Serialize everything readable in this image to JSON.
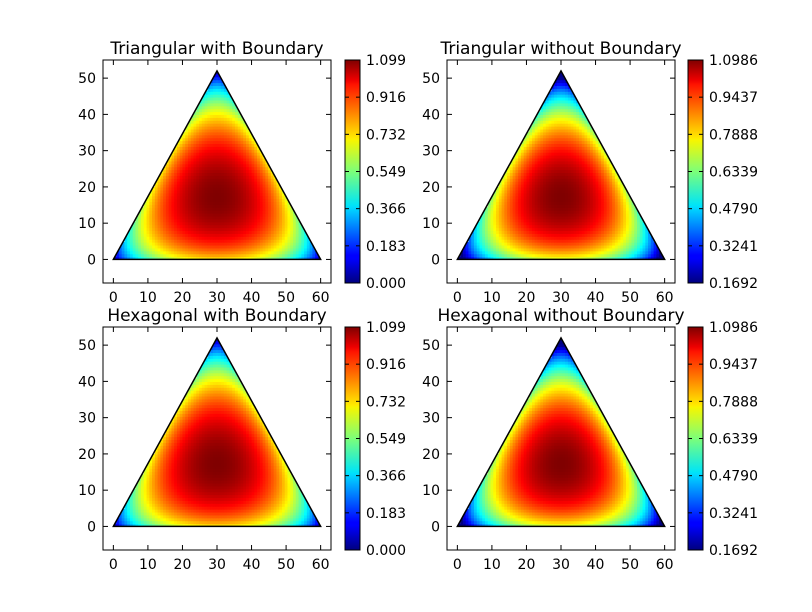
{
  "figure": {
    "colormap": "jet"
  },
  "chart_data": [
    {
      "type": "heatmap",
      "title": "Triangular with Boundary",
      "xlabel": "",
      "ylabel": "",
      "xlim": [
        -3,
        63
      ],
      "ylim": [
        -6.5,
        55
      ],
      "xticks": [
        0,
        10,
        20,
        30,
        40,
        50,
        60
      ],
      "yticks": [
        0,
        10,
        20,
        30,
        40,
        50
      ],
      "domain_vertices": [
        [
          0,
          0
        ],
        [
          60,
          0
        ],
        [
          30,
          52
        ]
      ],
      "field_max_location": [
        30,
        17.3
      ],
      "include_boundary": true,
      "colorbar": {
        "min": 0.0,
        "max": 1.099,
        "ticks": [
          "0.000",
          "0.183",
          "0.366",
          "0.549",
          "0.732",
          "0.916",
          "1.099"
        ]
      }
    },
    {
      "type": "heatmap",
      "title": "Triangular without Boundary",
      "xlabel": "",
      "ylabel": "",
      "xlim": [
        -3,
        63
      ],
      "ylim": [
        -6.5,
        55
      ],
      "xticks": [
        0,
        10,
        20,
        30,
        40,
        50,
        60
      ],
      "yticks": [
        0,
        10,
        20,
        30,
        40,
        50
      ],
      "domain_vertices": [
        [
          0,
          0
        ],
        [
          60,
          0
        ],
        [
          30,
          52
        ]
      ],
      "field_max_location": [
        30,
        17.3
      ],
      "include_boundary": false,
      "colorbar": {
        "min": 0.1692,
        "max": 1.0986,
        "ticks": [
          "0.1692",
          "0.3241",
          "0.4790",
          "0.6339",
          "0.7888",
          "0.9437",
          "1.0986"
        ]
      }
    },
    {
      "type": "heatmap",
      "title": "Hexagonal with Boundary",
      "xlabel": "",
      "ylabel": "",
      "xlim": [
        -3,
        63
      ],
      "ylim": [
        -6.5,
        55
      ],
      "xticks": [
        0,
        10,
        20,
        30,
        40,
        50,
        60
      ],
      "yticks": [
        0,
        10,
        20,
        30,
        40,
        50
      ],
      "domain_vertices": [
        [
          0,
          0
        ],
        [
          60,
          0
        ],
        [
          30,
          52
        ]
      ],
      "field_max_location": [
        30,
        17.3
      ],
      "include_boundary": true,
      "colorbar": {
        "min": 0.0,
        "max": 1.099,
        "ticks": [
          "0.000",
          "0.183",
          "0.366",
          "0.549",
          "0.732",
          "0.916",
          "1.099"
        ]
      }
    },
    {
      "type": "heatmap",
      "title": "Hexagonal without Boundary",
      "xlabel": "",
      "ylabel": "",
      "xlim": [
        -3,
        63
      ],
      "ylim": [
        -6.5,
        55
      ],
      "xticks": [
        0,
        10,
        20,
        30,
        40,
        50,
        60
      ],
      "yticks": [
        0,
        10,
        20,
        30,
        40,
        50
      ],
      "domain_vertices": [
        [
          0,
          0
        ],
        [
          60,
          0
        ],
        [
          30,
          52
        ]
      ],
      "field_max_location": [
        30,
        17.3
      ],
      "include_boundary": false,
      "colorbar": {
        "min": 0.1692,
        "max": 1.0986,
        "ticks": [
          "0.1692",
          "0.3241",
          "0.4790",
          "0.6339",
          "0.7888",
          "0.9437",
          "1.0986"
        ]
      }
    }
  ]
}
